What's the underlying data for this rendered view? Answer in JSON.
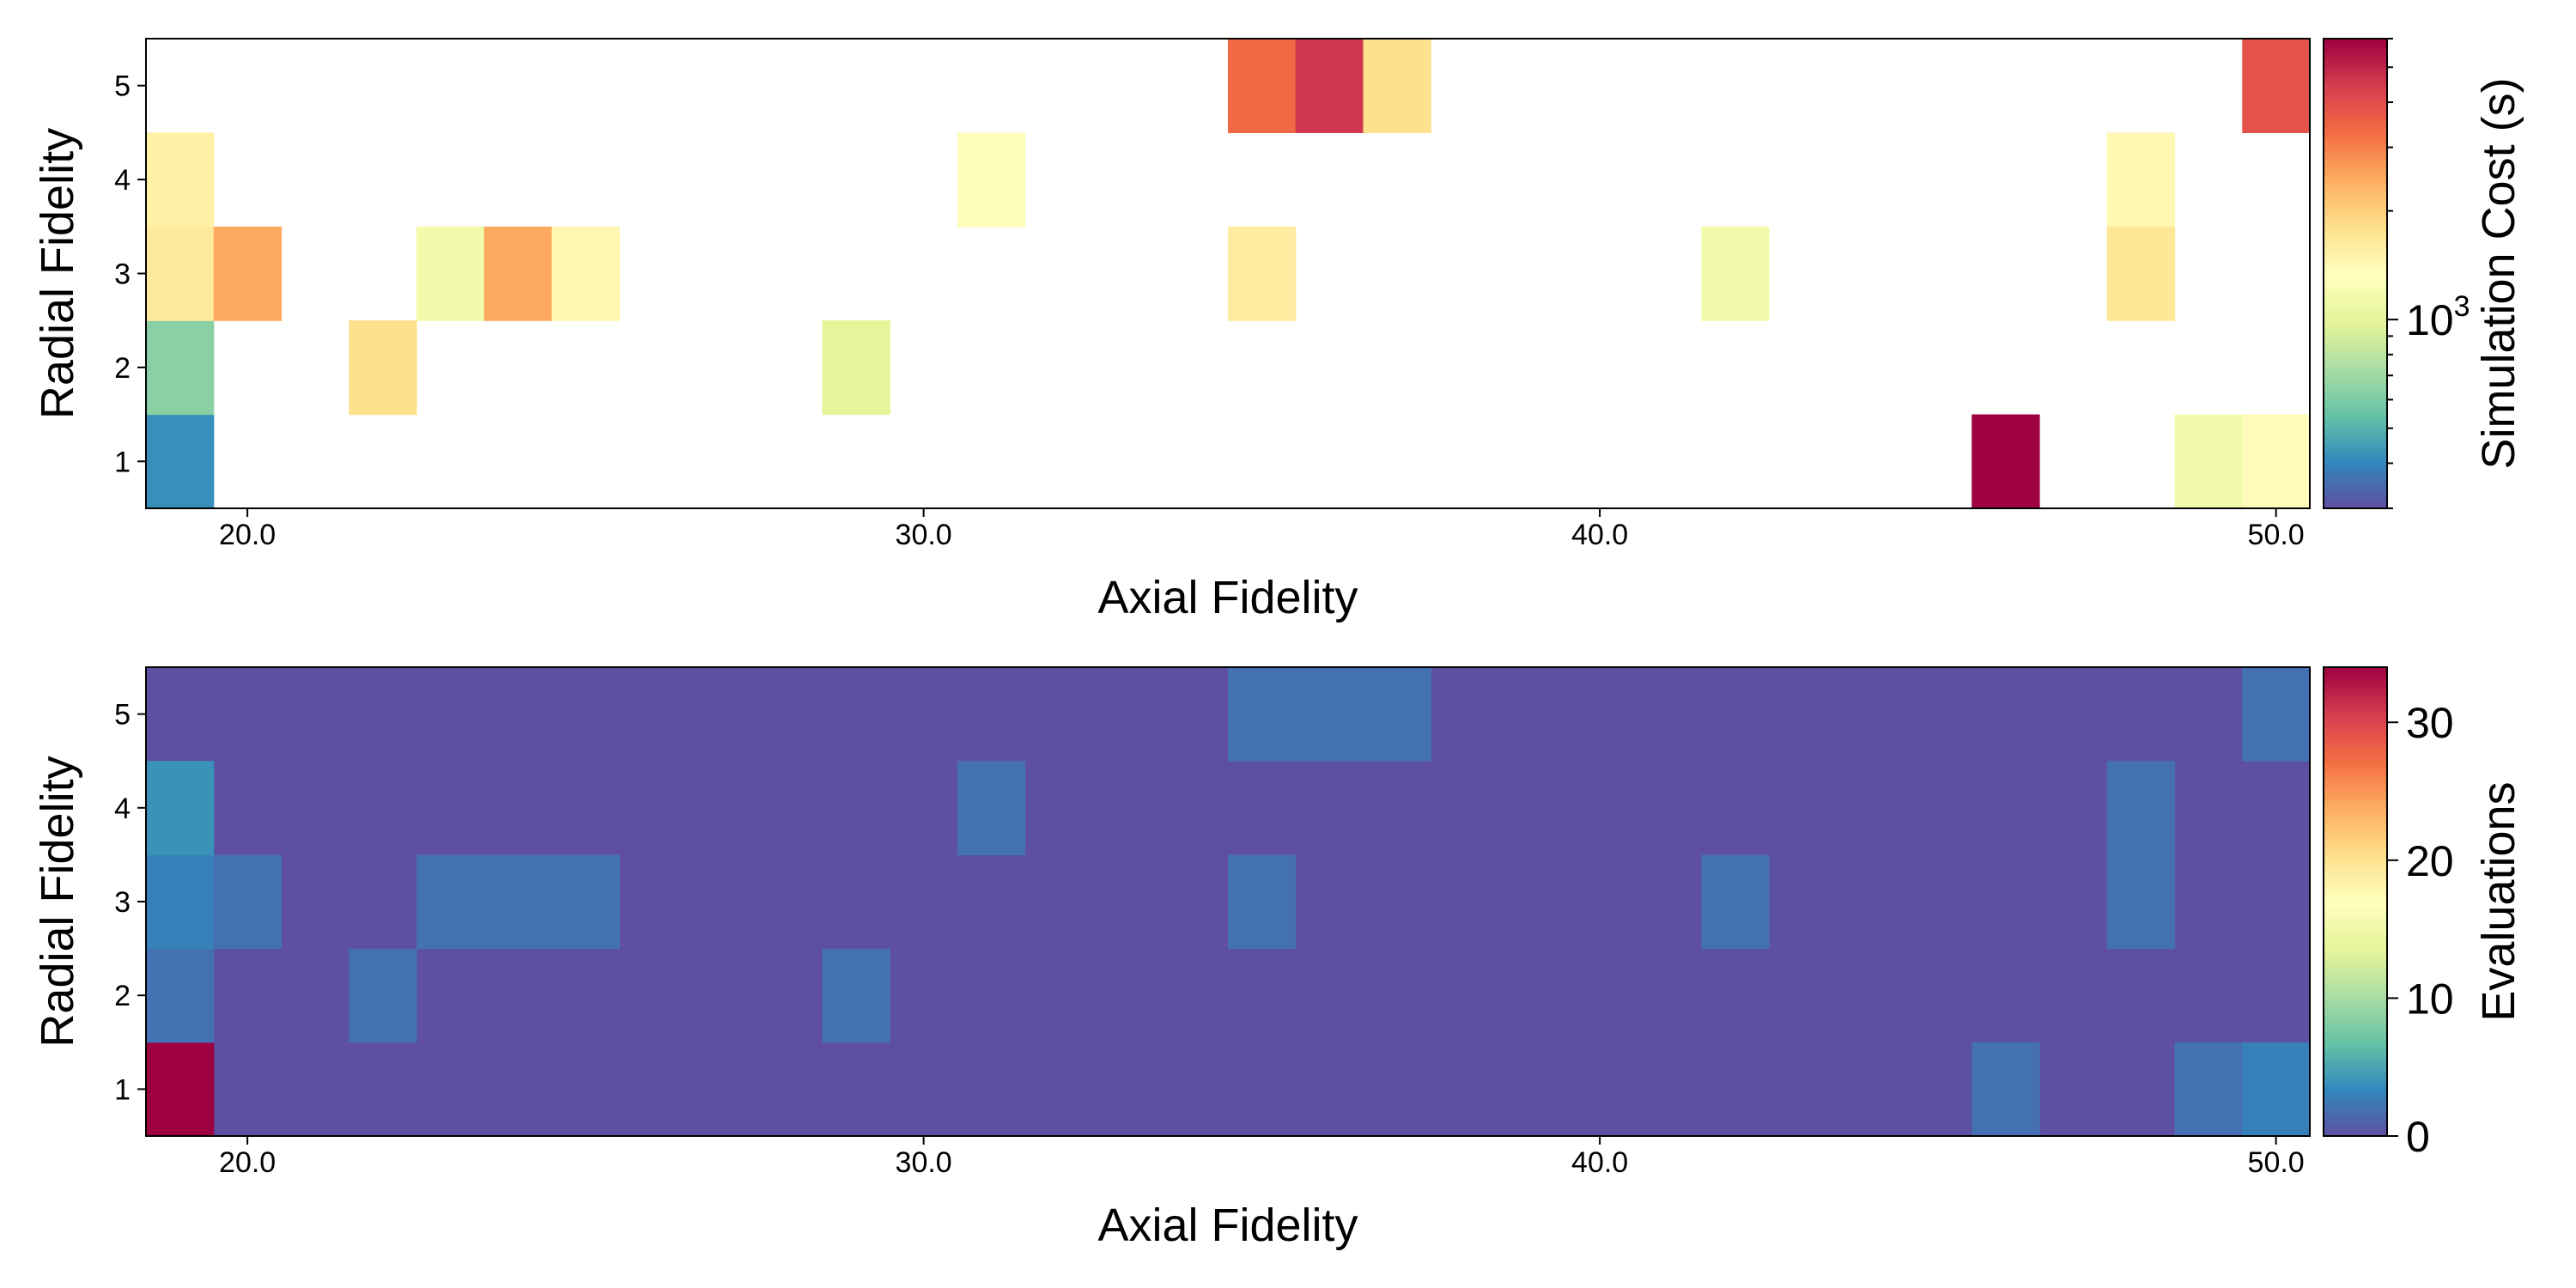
{
  "chart_data": [
    {
      "type": "heatmap",
      "xlabel": "Axial Fidelity",
      "ylabel": "Radial Fidelity",
      "x_tick_labels": [
        "20.0",
        "30.0",
        "40.0",
        "50.0"
      ],
      "x_tick_values": [
        20,
        30,
        40,
        50
      ],
      "y_tick_labels": [
        "1",
        "2",
        "3",
        "4",
        "5"
      ],
      "xlim": [
        18.5,
        50.5
      ],
      "ylim": [
        0.5,
        5.5
      ],
      "colorbar": {
        "label": "Simulation Cost (s)",
        "scale": "log",
        "colormap": "Spectral_r",
        "range": [
          300,
          6000
        ],
        "tick_label_base": "10",
        "tick_label_exp": "3",
        "tick_value": 1000
      },
      "cells": [
        {
          "axial": 19,
          "radial": 1,
          "value": 420
        },
        {
          "axial": 19,
          "radial": 2,
          "value": 640
        },
        {
          "axial": 19,
          "radial": 3,
          "value": 1650
        },
        {
          "axial": 19,
          "radial": 4,
          "value": 1550
        },
        {
          "axial": 20,
          "radial": 3,
          "value": 2500
        },
        {
          "axial": 22,
          "radial": 2,
          "value": 1800
        },
        {
          "axial": 23,
          "radial": 3,
          "value": 1150
        },
        {
          "axial": 24,
          "radial": 3,
          "value": 2500
        },
        {
          "axial": 25,
          "radial": 3,
          "value": 1450
        },
        {
          "axial": 29,
          "radial": 2,
          "value": 1000
        },
        {
          "axial": 31,
          "radial": 4,
          "value": 1300
        },
        {
          "axial": 35,
          "radial": 3,
          "value": 1600
        },
        {
          "axial": 35,
          "radial": 5,
          "value": 3400
        },
        {
          "axial": 36,
          "radial": 5,
          "value": 4600
        },
        {
          "axial": 37,
          "radial": 5,
          "value": 1800
        },
        {
          "axial": 42,
          "radial": 3,
          "value": 1150
        },
        {
          "axial": 46,
          "radial": 1,
          "value": 6000
        },
        {
          "axial": 48,
          "radial": 3,
          "value": 1700
        },
        {
          "axial": 48,
          "radial": 4,
          "value": 1450
        },
        {
          "axial": 49,
          "radial": 1,
          "value": 1150
        },
        {
          "axial": 50,
          "radial": 1,
          "value": 1400
        },
        {
          "axial": 50,
          "radial": 5,
          "value": 3900
        }
      ]
    },
    {
      "type": "heatmap",
      "xlabel": "Axial Fidelity",
      "ylabel": "Radial Fidelity",
      "x_tick_labels": [
        "20.0",
        "30.0",
        "40.0",
        "50.0"
      ],
      "x_tick_values": [
        20,
        30,
        40,
        50
      ],
      "y_tick_labels": [
        "1",
        "2",
        "3",
        "4",
        "5"
      ],
      "xlim": [
        18.5,
        50.5
      ],
      "ylim": [
        0.5,
        5.5
      ],
      "x_range": [
        19,
        50
      ],
      "background_value": 0,
      "colorbar": {
        "label": "Evaluations",
        "scale": "linear",
        "colormap": "Spectral_r",
        "range": [
          0,
          34
        ],
        "ticks": [
          0,
          10,
          20,
          30
        ]
      },
      "cells": [
        {
          "axial": 19,
          "radial": 1,
          "value": 34
        },
        {
          "axial": 19,
          "radial": 2,
          "value": 2
        },
        {
          "axial": 19,
          "radial": 3,
          "value": 3
        },
        {
          "axial": 19,
          "radial": 4,
          "value": 4
        },
        {
          "axial": 20,
          "radial": 3,
          "value": 2
        },
        {
          "axial": 22,
          "radial": 2,
          "value": 2
        },
        {
          "axial": 23,
          "radial": 3,
          "value": 2
        },
        {
          "axial": 24,
          "radial": 3,
          "value": 2
        },
        {
          "axial": 25,
          "radial": 3,
          "value": 2
        },
        {
          "axial": 29,
          "radial": 2,
          "value": 2
        },
        {
          "axial": 31,
          "radial": 4,
          "value": 2
        },
        {
          "axial": 35,
          "radial": 3,
          "value": 2
        },
        {
          "axial": 35,
          "radial": 5,
          "value": 2
        },
        {
          "axial": 36,
          "radial": 5,
          "value": 2
        },
        {
          "axial": 37,
          "radial": 5,
          "value": 2
        },
        {
          "axial": 42,
          "radial": 3,
          "value": 2
        },
        {
          "axial": 46,
          "radial": 1,
          "value": 2
        },
        {
          "axial": 48,
          "radial": 3,
          "value": 2
        },
        {
          "axial": 48,
          "radial": 4,
          "value": 2
        },
        {
          "axial": 49,
          "radial": 1,
          "value": 2
        },
        {
          "axial": 50,
          "radial": 1,
          "value": 3
        },
        {
          "axial": 50,
          "radial": 5,
          "value": 2
        }
      ]
    }
  ]
}
